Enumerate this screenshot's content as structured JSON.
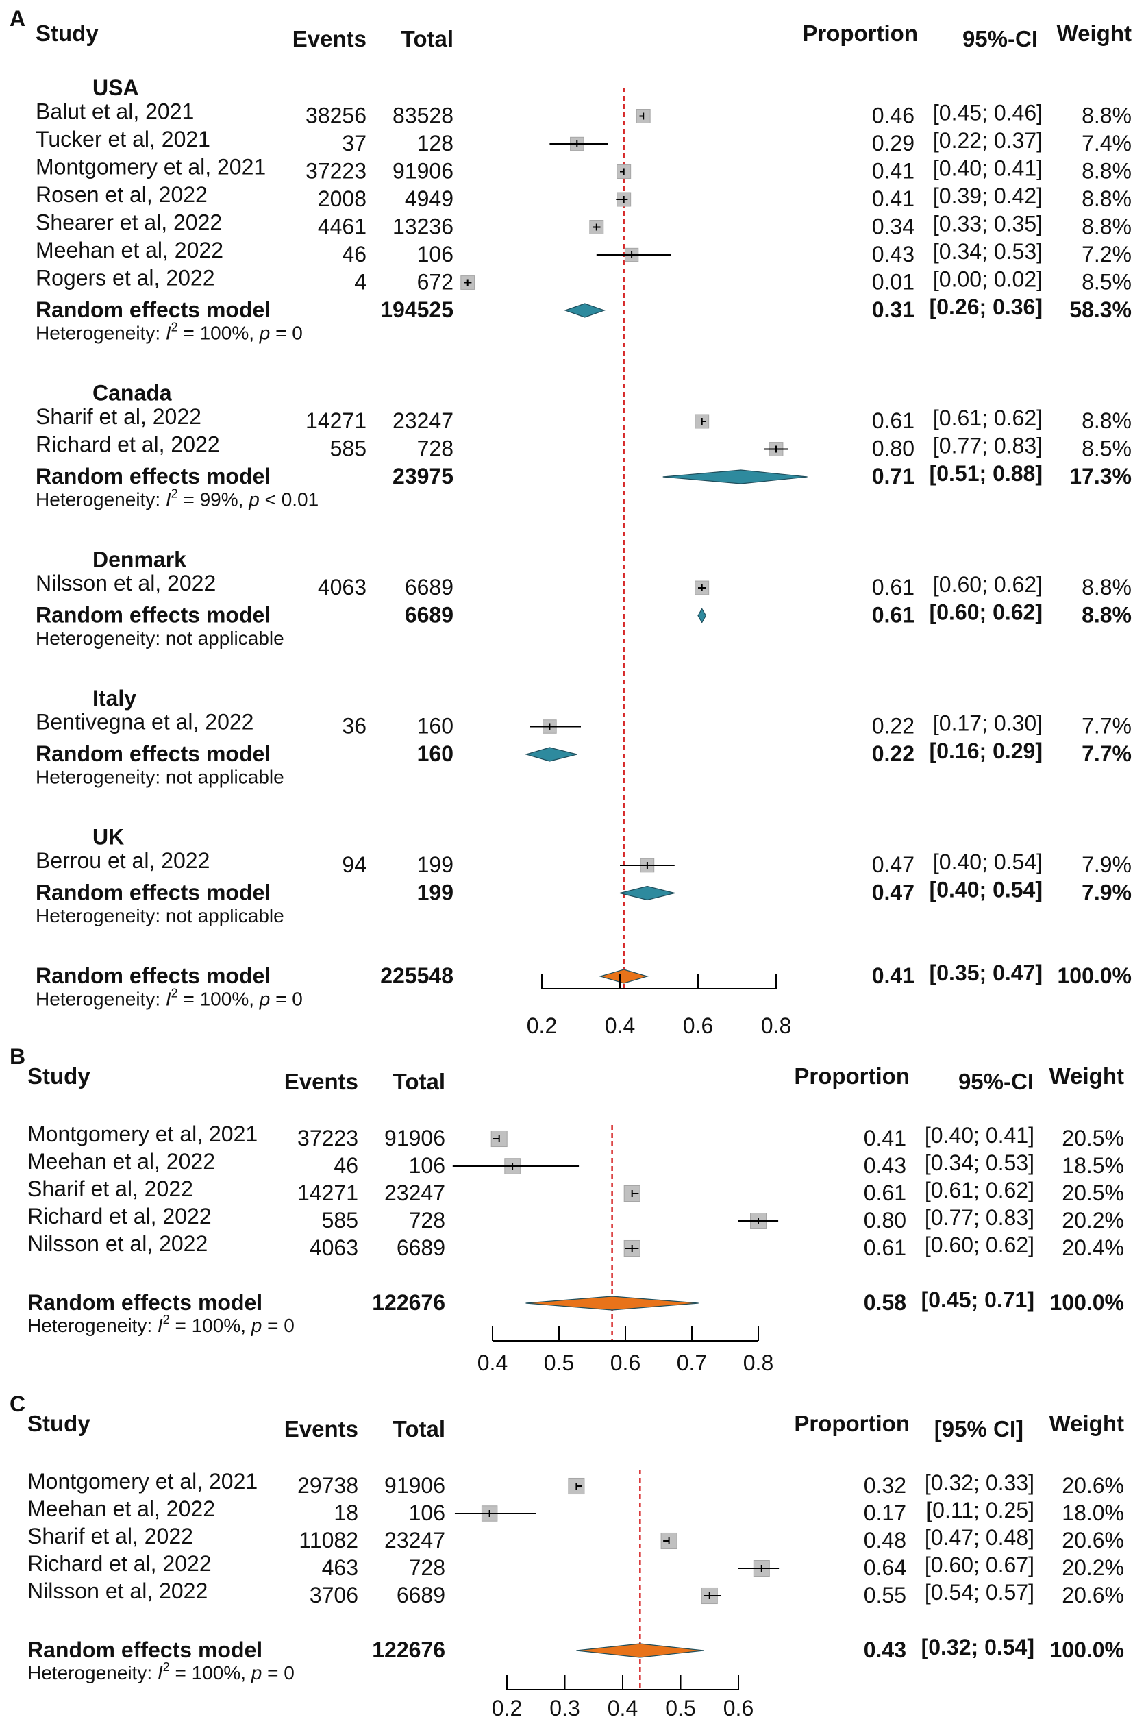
{
  "chart_data": [
    {
      "type": "forest",
      "panel": "A",
      "headers": {
        "study": "Study",
        "events": "Events",
        "total": "Total",
        "proportion": "Proportion",
        "ci": "95%-CI",
        "weight": "Weight"
      },
      "xlim": [
        0.2,
        0.8
      ],
      "ticks": [
        "0.2",
        "0.4",
        "0.6",
        "0.8"
      ],
      "reference": 0.41,
      "rows": [
        {
          "kind": "group",
          "label": "USA"
        },
        {
          "kind": "study",
          "label": "Balut et al, 2021",
          "events": "38256",
          "total": "83528",
          "est": 0.46,
          "lo": 0.45,
          "hi": 0.46,
          "prop": "0.46",
          "ci": "[0.45; 0.46]",
          "weight": "8.8%",
          "w": 8.8
        },
        {
          "kind": "study",
          "label": "Tucker et al, 2021",
          "events": "37",
          "total": "128",
          "est": 0.29,
          "lo": 0.22,
          "hi": 0.37,
          "prop": "0.29",
          "ci": "[0.22; 0.37]",
          "weight": "7.4%",
          "w": 7.4
        },
        {
          "kind": "study",
          "label": "Montgomery et al, 2021",
          "events": "37223",
          "total": "91906",
          "est": 0.41,
          "lo": 0.4,
          "hi": 0.41,
          "prop": "0.41",
          "ci": "[0.40; 0.41]",
          "weight": "8.8%",
          "w": 8.8
        },
        {
          "kind": "study",
          "label": "Rosen et al, 2022",
          "events": "2008",
          "total": "4949",
          "est": 0.41,
          "lo": 0.39,
          "hi": 0.42,
          "prop": "0.41",
          "ci": "[0.39; 0.42]",
          "weight": "8.8%",
          "w": 8.8
        },
        {
          "kind": "study",
          "label": "Shearer et al, 2022",
          "events": "4461",
          "total": "13236",
          "est": 0.34,
          "lo": 0.33,
          "hi": 0.35,
          "prop": "0.34",
          "ci": "[0.33; 0.35]",
          "weight": "8.8%",
          "w": 8.8
        },
        {
          "kind": "study",
          "label": "Meehan et al, 2022",
          "events": "46",
          "total": "106",
          "est": 0.43,
          "lo": 0.34,
          "hi": 0.53,
          "prop": "0.43",
          "ci": "[0.34; 0.53]",
          "weight": "7.2%",
          "w": 7.2
        },
        {
          "kind": "study",
          "label": "Rogers et al, 2022",
          "events": "4",
          "total": "672",
          "est": 0.01,
          "lo": 0.0,
          "hi": 0.02,
          "prop": "0.01",
          "ci": "[0.00; 0.02]",
          "weight": "8.5%",
          "w": 8.5
        },
        {
          "kind": "summary",
          "label": "Random effects model",
          "total": "194525",
          "est": 0.31,
          "lo": 0.26,
          "hi": 0.36,
          "prop": "0.31",
          "ci": "[0.26; 0.36]",
          "weight": "58.3%",
          "color": "#2E8A9E"
        },
        {
          "kind": "het",
          "prefix": "Heterogeneity:",
          "i2": "= 100%",
          "p": "= 0"
        },
        {
          "kind": "blank"
        },
        {
          "kind": "group",
          "label": "Canada"
        },
        {
          "kind": "study",
          "label": "Sharif et al, 2022",
          "events": "14271",
          "total": "23247",
          "est": 0.61,
          "lo": 0.61,
          "hi": 0.62,
          "prop": "0.61",
          "ci": "[0.61; 0.62]",
          "weight": "8.8%",
          "w": 8.8
        },
        {
          "kind": "study",
          "label": "Richard et al, 2022",
          "events": "585",
          "total": "728",
          "est": 0.8,
          "lo": 0.77,
          "hi": 0.83,
          "prop": "0.80",
          "ci": "[0.77; 0.83]",
          "weight": "8.5%",
          "w": 8.5
        },
        {
          "kind": "summary",
          "label": "Random effects model",
          "total": "23975",
          "est": 0.71,
          "lo": 0.51,
          "hi": 0.88,
          "prop": "0.71",
          "ci": "[0.51; 0.88]",
          "weight": "17.3%",
          "color": "#2E8A9E"
        },
        {
          "kind": "het",
          "prefix": "Heterogeneity:",
          "i2": "= 99%",
          "p": "< 0.01"
        },
        {
          "kind": "blank"
        },
        {
          "kind": "group",
          "label": "Denmark"
        },
        {
          "kind": "study",
          "label": "Nilsson et al, 2022",
          "events": "4063",
          "total": "6689",
          "est": 0.61,
          "lo": 0.6,
          "hi": 0.62,
          "prop": "0.61",
          "ci": "[0.60; 0.62]",
          "weight": "8.8%",
          "w": 8.8
        },
        {
          "kind": "summary",
          "label": "Random effects model",
          "total": "6689",
          "est": 0.61,
          "lo": 0.6,
          "hi": 0.62,
          "prop": "0.61",
          "ci": "[0.60; 0.62]",
          "weight": "8.8%",
          "color": "#2E8A9E"
        },
        {
          "kind": "het",
          "text": "Heterogeneity:  not applicable"
        },
        {
          "kind": "blank"
        },
        {
          "kind": "group",
          "label": "Italy"
        },
        {
          "kind": "study",
          "label": "Bentivegna et al, 2022",
          "events": "36",
          "total": "160",
          "est": 0.22,
          "lo": 0.17,
          "hi": 0.3,
          "prop": "0.22",
          "ci": "[0.17; 0.30]",
          "weight": "7.7%",
          "w": 7.7
        },
        {
          "kind": "summary",
          "label": "Random effects model",
          "total": "160",
          "est": 0.22,
          "lo": 0.16,
          "hi": 0.29,
          "prop": "0.22",
          "ci": "[0.16; 0.29]",
          "weight": "7.7%",
          "color": "#2E8A9E"
        },
        {
          "kind": "het",
          "text": "Heterogeneity:  not applicable"
        },
        {
          "kind": "blank"
        },
        {
          "kind": "group",
          "label": "UK"
        },
        {
          "kind": "study",
          "label": "Berrou et al, 2022",
          "events": "94",
          "total": "199",
          "est": 0.47,
          "lo": 0.4,
          "hi": 0.54,
          "prop": "0.47",
          "ci": "[0.40; 0.54]",
          "weight": "7.9%",
          "w": 7.9
        },
        {
          "kind": "summary",
          "label": "Random effects model",
          "total": "199",
          "est": 0.47,
          "lo": 0.4,
          "hi": 0.54,
          "prop": "0.47",
          "ci": "[0.40; 0.54]",
          "weight": "7.9%",
          "color": "#2E8A9E"
        },
        {
          "kind": "het",
          "text": "Heterogeneity:  not applicable"
        },
        {
          "kind": "blank"
        },
        {
          "kind": "summary",
          "label": "Random effects model",
          "total": "225548",
          "est": 0.41,
          "lo": 0.35,
          "hi": 0.47,
          "prop": "0.41",
          "ci": "[0.35; 0.47]",
          "weight": "100.0%",
          "color": "#E8731A"
        },
        {
          "kind": "het",
          "prefix": "Heterogeneity:",
          "i2": "= 100%",
          "p": "= 0"
        }
      ]
    },
    {
      "type": "forest",
      "panel": "B",
      "headers": {
        "study": "Study",
        "events": "Events",
        "total": "Total",
        "proportion": "Proportion",
        "ci": "95%-CI",
        "weight": "Weight"
      },
      "xlim": [
        0.4,
        0.8
      ],
      "ticks": [
        "0.4",
        "0.5",
        "0.6",
        "0.7",
        "0.8"
      ],
      "reference": 0.58,
      "rows": [
        {
          "kind": "study",
          "label": "Montgomery et al, 2021",
          "events": "37223",
          "total": "91906",
          "est": 0.41,
          "lo": 0.4,
          "hi": 0.41,
          "prop": "0.41",
          "ci": "[0.40; 0.41]",
          "weight": "20.5%",
          "w": 20.5
        },
        {
          "kind": "study",
          "label": "Meehan et al, 2022",
          "events": "46",
          "total": "106",
          "est": 0.43,
          "lo": 0.34,
          "hi": 0.53,
          "prop": "0.43",
          "ci": "[0.34; 0.53]",
          "weight": "18.5%",
          "w": 18.5
        },
        {
          "kind": "study",
          "label": "Sharif et al, 2022",
          "events": "14271",
          "total": "23247",
          "est": 0.61,
          "lo": 0.61,
          "hi": 0.62,
          "prop": "0.61",
          "ci": "[0.61; 0.62]",
          "weight": "20.5%",
          "w": 20.5
        },
        {
          "kind": "study",
          "label": "Richard et al, 2022",
          "events": "585",
          "total": "728",
          "est": 0.8,
          "lo": 0.77,
          "hi": 0.83,
          "prop": "0.80",
          "ci": "[0.77; 0.83]",
          "weight": "20.2%",
          "w": 20.2
        },
        {
          "kind": "study",
          "label": "Nilsson et al, 2022",
          "events": "4063",
          "total": "6689",
          "est": 0.61,
          "lo": 0.6,
          "hi": 0.62,
          "prop": "0.61",
          "ci": "[0.60; 0.62]",
          "weight": "20.4%",
          "w": 20.4
        },
        {
          "kind": "blank"
        },
        {
          "kind": "summary",
          "label": "Random effects model",
          "total": "122676",
          "est": 0.58,
          "lo": 0.45,
          "hi": 0.71,
          "prop": "0.58",
          "ci": "[0.45; 0.71]",
          "weight": "100.0%",
          "color": "#E8731A"
        },
        {
          "kind": "het",
          "prefix": "Heterogeneity:",
          "i2": "= 100%",
          "p": "= 0"
        }
      ]
    },
    {
      "type": "forest",
      "panel": "C",
      "headers": {
        "study": "Study",
        "events": "Events",
        "total": "Total",
        "proportion": "Proportion",
        "ci": "[95% CI]",
        "weight": "Weight"
      },
      "xlim": [
        0.2,
        0.6
      ],
      "ticks": [
        "0.2",
        "0.3",
        "0.4",
        "0.5",
        "0.6"
      ],
      "reference": 0.43,
      "rows": [
        {
          "kind": "study",
          "label": "Montgomery et al, 2021",
          "events": "29738",
          "total": "91906",
          "est": 0.32,
          "lo": 0.32,
          "hi": 0.33,
          "prop": "0.32",
          "ci": "[0.32; 0.33]",
          "weight": "20.6%",
          "w": 20.6
        },
        {
          "kind": "study",
          "label": "Meehan et al, 2022",
          "events": "18",
          "total": "106",
          "est": 0.17,
          "lo": 0.11,
          "hi": 0.25,
          "prop": "0.17",
          "ci": "[0.11; 0.25]",
          "weight": "18.0%",
          "w": 18.0
        },
        {
          "kind": "study",
          "label": "Sharif et al, 2022",
          "events": "11082",
          "total": "23247",
          "est": 0.48,
          "lo": 0.47,
          "hi": 0.48,
          "prop": "0.48",
          "ci": "[0.47; 0.48]",
          "weight": "20.6%",
          "w": 20.6
        },
        {
          "kind": "study",
          "label": "Richard et al, 2022",
          "events": "463",
          "total": "728",
          "est": 0.64,
          "lo": 0.6,
          "hi": 0.67,
          "prop": "0.64",
          "ci": "[0.60; 0.67]",
          "weight": "20.2%",
          "w": 20.2
        },
        {
          "kind": "study",
          "label": "Nilsson et al, 2022",
          "events": "3706",
          "total": "6689",
          "est": 0.55,
          "lo": 0.54,
          "hi": 0.57,
          "prop": "0.55",
          "ci": "[0.54; 0.57]",
          "weight": "20.6%",
          "w": 20.6
        },
        {
          "kind": "blank"
        },
        {
          "kind": "summary",
          "label": "Random effects model",
          "total": "122676",
          "est": 0.43,
          "lo": 0.32,
          "hi": 0.54,
          "prop": "0.43",
          "ci": "[0.32; 0.54]",
          "weight": "100.0%",
          "color": "#E8731A"
        },
        {
          "kind": "het",
          "prefix": "Heterogeneity:",
          "i2": "= 100%",
          "p": "= 0"
        }
      ]
    }
  ],
  "style": {
    "reference_line": "#D62728",
    "box_fill": "#C0C0C0",
    "box_stroke": "#A6A6A6",
    "whisker": "#000000",
    "diamond_stroke": "#1F4E5C",
    "text": "#111111"
  }
}
